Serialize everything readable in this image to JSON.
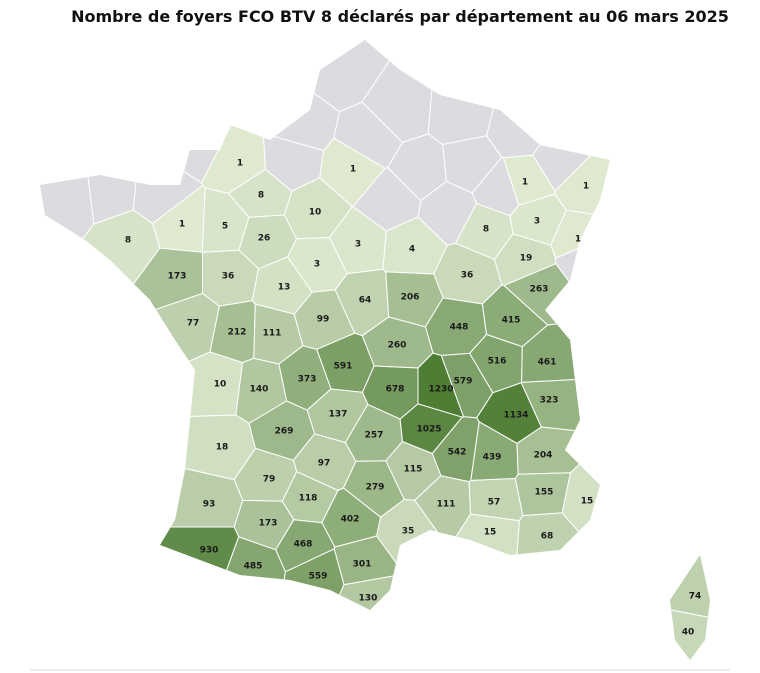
{
  "title": "Nombre de foyers FCO BTV 8 déclarés par département au 06 mars 2025",
  "regions": [
    {
      "value": 1
    },
    {
      "value": 1
    },
    {
      "value": 1
    },
    {
      "value": 1
    },
    {
      "value": 8
    },
    {
      "value": 10
    },
    {
      "value": 1
    },
    {
      "value": 5
    },
    {
      "value": 3
    },
    {
      "value": 8
    },
    {
      "value": 26
    },
    {
      "value": 1
    },
    {
      "value": 3
    },
    {
      "value": 4
    },
    {
      "value": 8
    },
    {
      "value": 19
    },
    {
      "value": 173
    },
    {
      "value": 36
    },
    {
      "value": 36
    },
    {
      "value": 3
    },
    {
      "value": 13
    },
    {
      "value": 263
    },
    {
      "value": 64
    },
    {
      "value": 206
    },
    {
      "value": 77
    },
    {
      "value": 212
    },
    {
      "value": 111
    },
    {
      "value": 99
    },
    {
      "value": 448
    },
    {
      "value": 415
    },
    {
      "value": 260
    },
    {
      "value": 516
    },
    {
      "value": 461
    },
    {
      "value": 591
    },
    {
      "value": 373
    },
    {
      "value": 678
    },
    {
      "value": 1230
    },
    {
      "value": 579
    },
    {
      "value": 1134
    },
    {
      "value": 323
    },
    {
      "value": 10
    },
    {
      "value": 140
    },
    {
      "value": 137
    },
    {
      "value": 269
    },
    {
      "value": 257
    },
    {
      "value": 1025
    },
    {
      "value": 542
    },
    {
      "value": 439
    },
    {
      "value": 204
    },
    {
      "value": 18
    },
    {
      "value": 97
    },
    {
      "value": 115
    },
    {
      "value": 279
    },
    {
      "value": 79
    },
    {
      "value": 155
    },
    {
      "value": 15
    },
    {
      "value": 93
    },
    {
      "value": 118
    },
    {
      "value": 111
    },
    {
      "value": 57
    },
    {
      "value": 402
    },
    {
      "value": 173
    },
    {
      "value": 35
    },
    {
      "value": 15
    },
    {
      "value": 68
    },
    {
      "value": 930
    },
    {
      "value": 468
    },
    {
      "value": 301
    },
    {
      "value": 485
    },
    {
      "value": 559
    },
    {
      "value": 130
    },
    {
      "value": 74
    },
    {
      "value": 40
    }
  ]
}
